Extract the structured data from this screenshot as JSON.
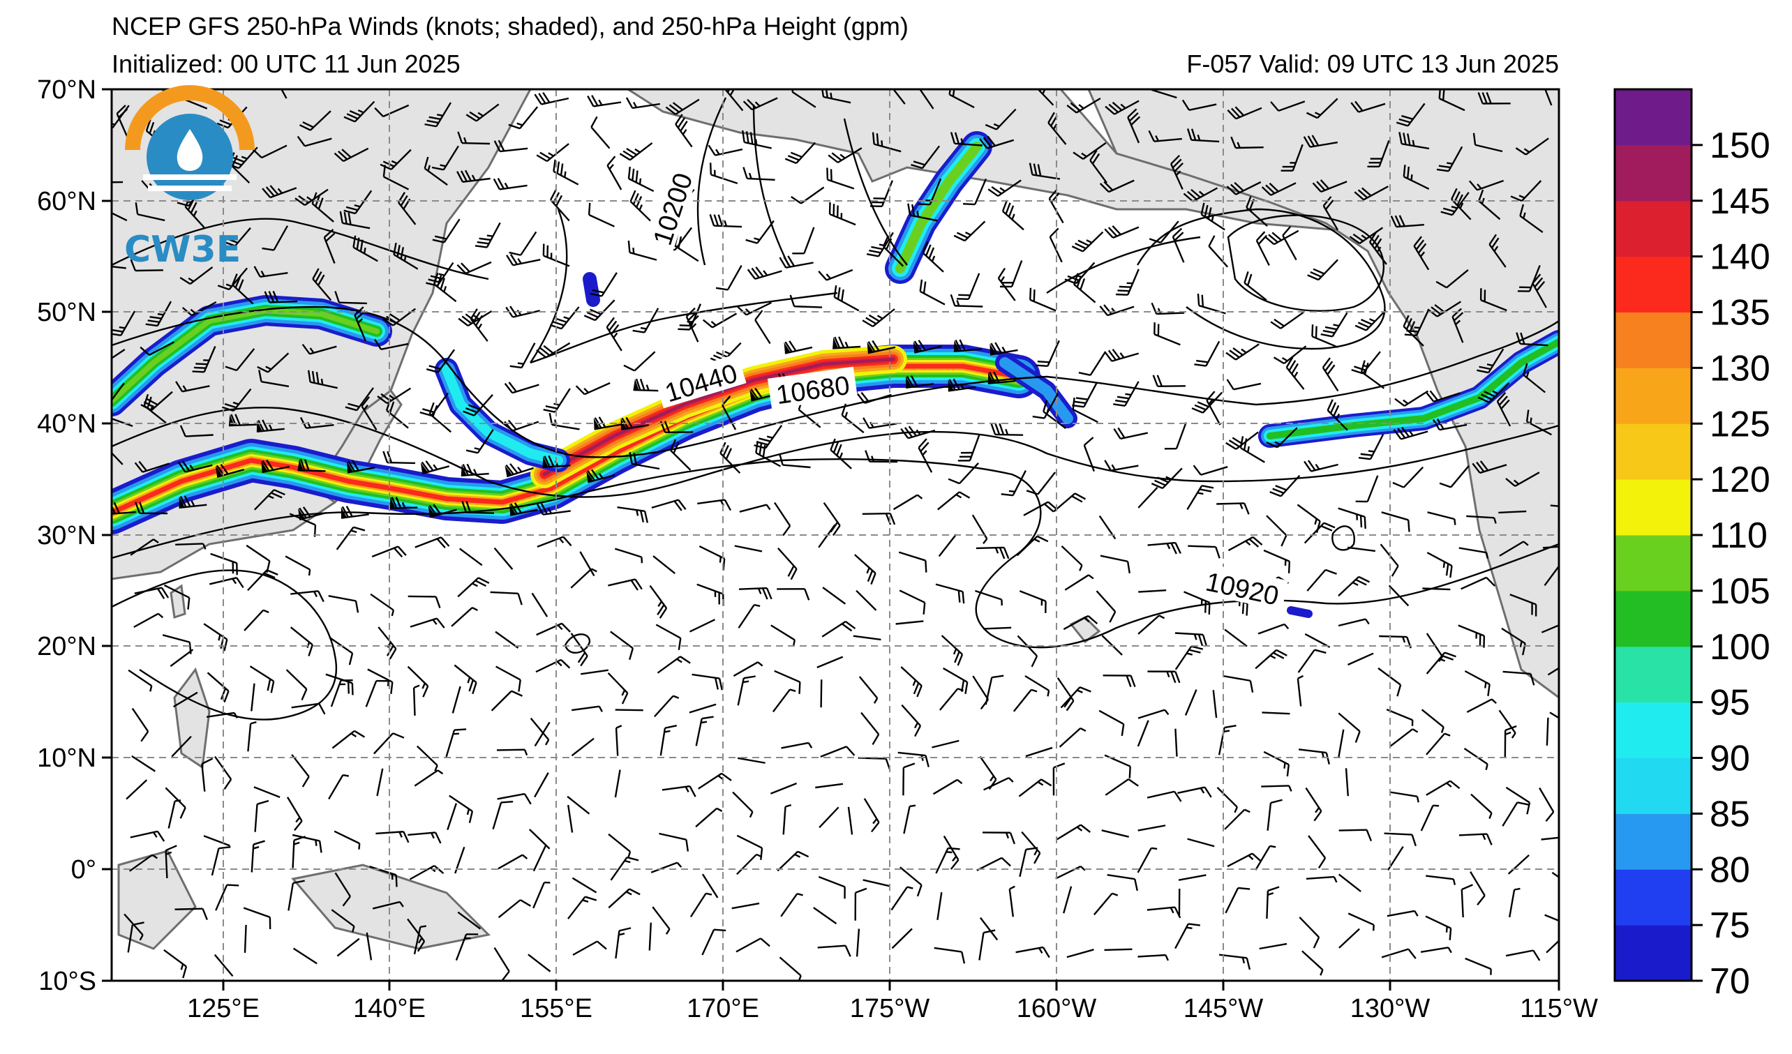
{
  "header": {
    "title": "NCEP GFS 250-hPa Winds (knots; shaded), and 250-hPa Height (gpm)",
    "initialized": "Initialized: 00 UTC 11 Jun 2025",
    "valid": "F-057  Valid: 09 UTC 13 Jun 2025"
  },
  "logo": {
    "text": "CW3E"
  },
  "map": {
    "lat_labels": [
      "70°N",
      "60°N",
      "50°N",
      "40°N",
      "30°N",
      "20°N",
      "10°N",
      "0°",
      "10°S"
    ],
    "lon_labels": [
      "125°E",
      "140°E",
      "155°E",
      "170°E",
      "175°W",
      "160°W",
      "145°W",
      "130°W",
      "115°W"
    ],
    "contour_labels": [
      "10200",
      "10440",
      "10680",
      "10920"
    ],
    "land_color": "#e3e3e3",
    "coast_color": "#6e6e6e",
    "contour_color": "#000000"
  },
  "colorbar": {
    "labels": [
      "150",
      "145",
      "140",
      "135",
      "130",
      "125",
      "120",
      "110",
      "105",
      "100",
      "95",
      "90",
      "85",
      "80",
      "75",
      "70"
    ],
    "colors": [
      "#1a1ccc",
      "#1f3ff0",
      "#2899f0",
      "#22d9f2",
      "#20ecf0",
      "#28e2a6",
      "#22be24",
      "#6ad020",
      "#f2f20a",
      "#f7c818",
      "#f9a51a",
      "#f7801f",
      "#fb2a1d",
      "#dc2030",
      "#a01c5c",
      "#6f1c8a"
    ]
  }
}
